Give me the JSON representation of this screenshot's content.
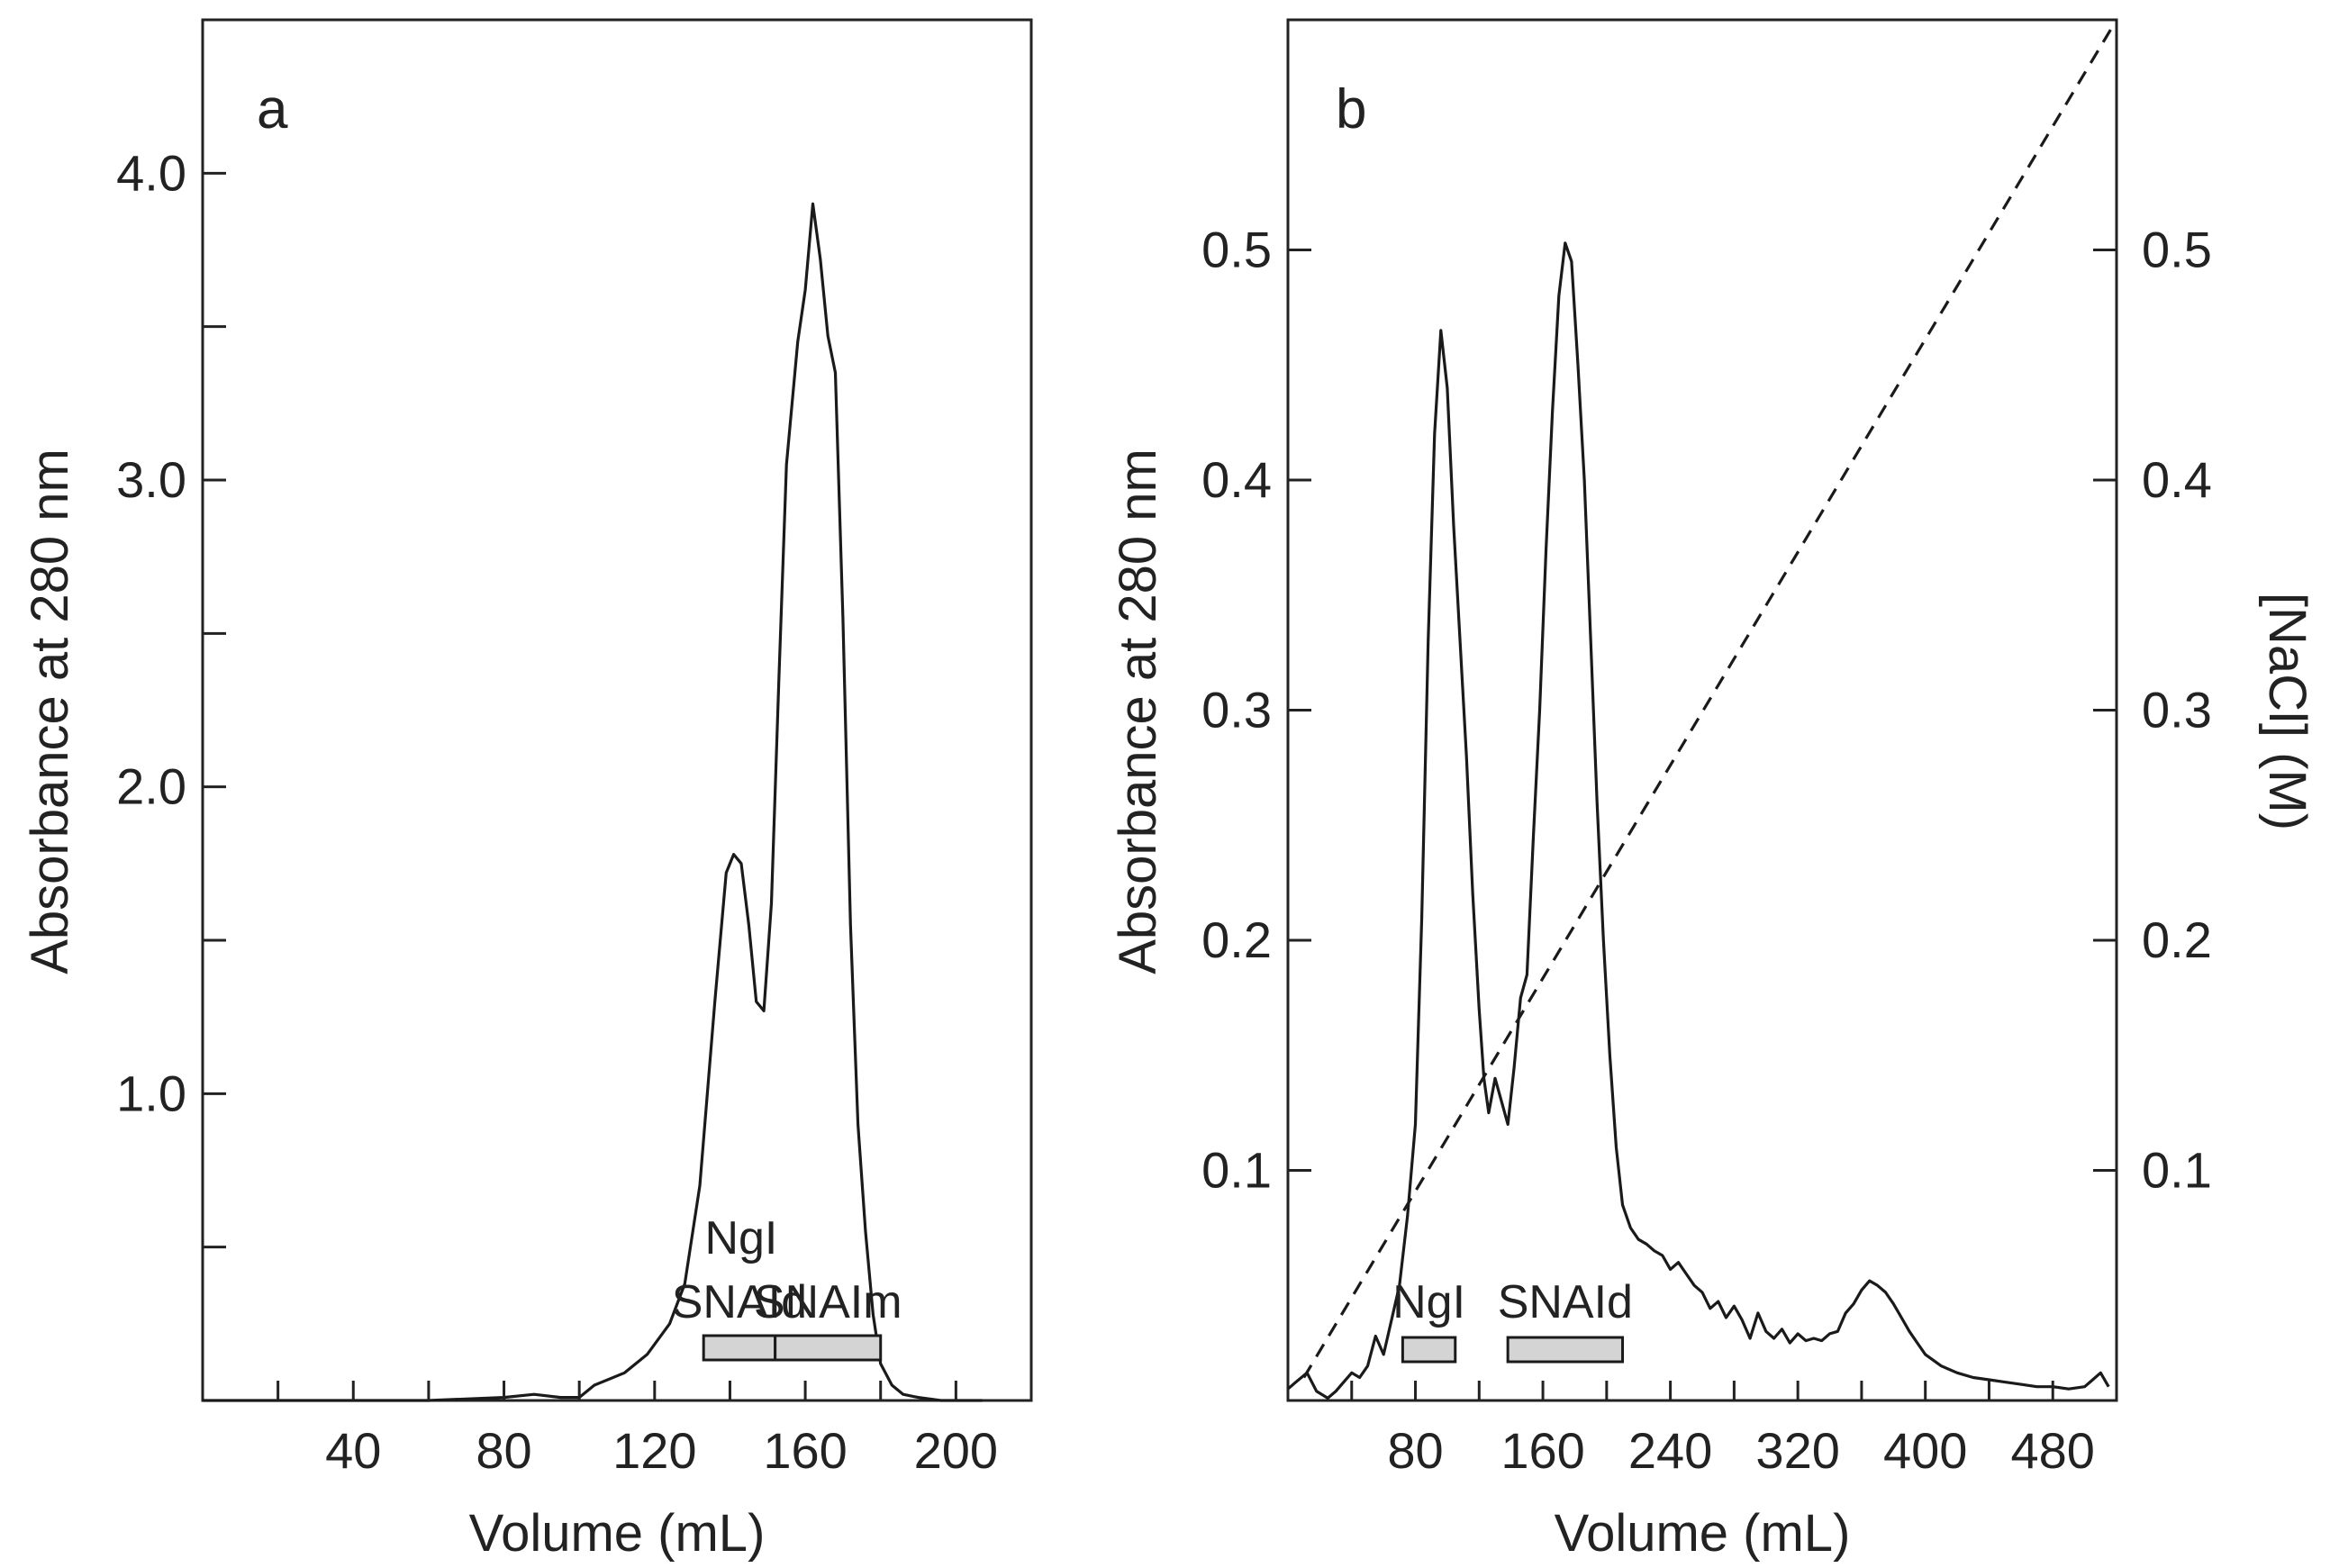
{
  "figure": {
    "panels": [
      "a",
      "b"
    ]
  },
  "chart_data": [
    {
      "panel": "a",
      "type": "line",
      "title": "",
      "xlabel": "Volume (mL)",
      "ylabel": "Absorbance at 280 nm",
      "xlim": [
        0,
        220
      ],
      "ylim": [
        0,
        4.5
      ],
      "x_ticklabels": [
        "40",
        "80",
        "120",
        "160",
        "200"
      ],
      "x_tick_values": [
        40,
        80,
        120,
        160,
        200
      ],
      "x_minor_ticks": [
        20,
        60,
        100,
        140,
        180
      ],
      "y_ticklabels": [
        "1.0",
        "2.0",
        "3.0",
        "4.0"
      ],
      "y_tick_values": [
        1.0,
        2.0,
        3.0,
        4.0
      ],
      "y_minor_ticks": [
        0.5,
        1.5,
        2.5,
        3.5
      ],
      "grid": false,
      "series": [
        {
          "name": "Absorbance at 280 nm",
          "x": [
            0,
            40,
            60,
            80,
            88,
            95,
            100,
            104,
            108,
            112,
            118,
            124,
            128,
            132,
            136,
            139,
            141,
            143,
            145,
            147,
            149,
            151,
            153,
            155,
            158,
            160,
            162,
            164,
            166,
            168,
            170,
            172,
            174,
            176,
            178,
            180,
            183,
            186,
            190,
            196,
            207
          ],
          "y": [
            0,
            0,
            0,
            0.01,
            0.02,
            0.01,
            0.01,
            0.05,
            0.07,
            0.09,
            0.15,
            0.25,
            0.38,
            0.7,
            1.3,
            1.72,
            1.78,
            1.75,
            1.55,
            1.3,
            1.27,
            1.62,
            2.35,
            3.05,
            3.45,
            3.62,
            3.9,
            3.72,
            3.47,
            3.35,
            2.55,
            1.55,
            0.9,
            0.55,
            0.28,
            0.12,
            0.05,
            0.02,
            0.01,
            0,
            0
          ]
        }
      ],
      "annotations": [
        {
          "label": "NgI",
          "line": 1,
          "x_range": [
            133,
            152
          ]
        },
        {
          "label": "SNAId",
          "line": 2,
          "x_range": [
            133,
            152
          ]
        },
        {
          "label": "SNAIm",
          "line": 2,
          "x_range": [
            152,
            180
          ]
        }
      ]
    },
    {
      "panel": "b",
      "type": "line",
      "title": "",
      "xlabel": "Volume (mL)",
      "ylabel": "Absorbance at 280 nm",
      "y2label": "[NaCl] (M)",
      "xlim": [
        0,
        520
      ],
      "ylim": [
        0,
        0.6
      ],
      "y2lim": [
        0,
        0.6
      ],
      "x_ticklabels": [
        "80",
        "160",
        "240",
        "320",
        "400",
        "480"
      ],
      "x_tick_values": [
        80,
        160,
        240,
        320,
        400,
        480
      ],
      "x_minor_ticks": [
        40,
        120,
        200,
        280,
        360,
        440
      ],
      "y_ticklabels": [
        "0.1",
        "0.2",
        "0.3",
        "0.4",
        "0.5"
      ],
      "y_tick_values": [
        0.1,
        0.2,
        0.3,
        0.4,
        0.5
      ],
      "y2_ticklabels": [
        "0.1",
        "0.2",
        "0.3",
        "0.4",
        "0.5"
      ],
      "y2_tick_values": [
        0.1,
        0.2,
        0.3,
        0.4,
        0.5
      ],
      "grid": false,
      "series": [
        {
          "name": "Absorbance at 280 nm",
          "axis": "left",
          "x": [
            0,
            5,
            12,
            18,
            25,
            30,
            35,
            40,
            45,
            50,
            55,
            60,
            65,
            70,
            75,
            80,
            84,
            88,
            92,
            96,
            100,
            104,
            108,
            112,
            116,
            120,
            123,
            126,
            130,
            134,
            138,
            142,
            146,
            150,
            154,
            158,
            162,
            166,
            170,
            174,
            178,
            182,
            186,
            190,
            194,
            198,
            202,
            206,
            210,
            215,
            220,
            225,
            230,
            235,
            240,
            245,
            250,
            255,
            260,
            265,
            270,
            275,
            280,
            285,
            290,
            295,
            300,
            305,
            310,
            315,
            320,
            325,
            330,
            335,
            340,
            345,
            350,
            355,
            360,
            365,
            370,
            375,
            380,
            385,
            390,
            395,
            400,
            410,
            420,
            430,
            440,
            450,
            460,
            470,
            480,
            490,
            500,
            505,
            510,
            515
          ],
          "y": [
            0.005,
            0.008,
            0.012,
            0.004,
            0.001,
            0.004,
            0.008,
            0.012,
            0.01,
            0.015,
            0.028,
            0.02,
            0.035,
            0.05,
            0.08,
            0.12,
            0.21,
            0.33,
            0.42,
            0.465,
            0.44,
            0.38,
            0.33,
            0.28,
            0.22,
            0.17,
            0.14,
            0.125,
            0.14,
            0.13,
            0.12,
            0.145,
            0.175,
            0.185,
            0.245,
            0.3,
            0.37,
            0.43,
            0.48,
            0.503,
            0.495,
            0.45,
            0.4,
            0.33,
            0.26,
            0.2,
            0.15,
            0.11,
            0.085,
            0.075,
            0.07,
            0.068,
            0.065,
            0.063,
            0.057,
            0.06,
            0.055,
            0.05,
            0.047,
            0.04,
            0.043,
            0.036,
            0.041,
            0.035,
            0.027,
            0.038,
            0.03,
            0.027,
            0.031,
            0.025,
            0.029,
            0.026,
            0.027,
            0.026,
            0.029,
            0.03,
            0.038,
            0.042,
            0.048,
            0.052,
            0.05,
            0.047,
            0.042,
            0.036,
            0.03,
            0.025,
            0.02,
            0.015,
            0.012,
            0.01,
            0.009,
            0.008,
            0.007,
            0.006,
            0.006,
            0.005,
            0.006,
            0.009,
            0.012,
            0.006
          ]
        },
        {
          "name": "[NaCl] (M)",
          "axis": "right",
          "style": "dashed",
          "x": [
            10,
            520
          ],
          "y": [
            0.01,
            0.6
          ]
        }
      ],
      "annotations": [
        {
          "label": "NgI",
          "x_range": [
            72,
            105
          ]
        },
        {
          "label": "SNAId",
          "x_range": [
            138,
            210
          ]
        }
      ]
    }
  ]
}
